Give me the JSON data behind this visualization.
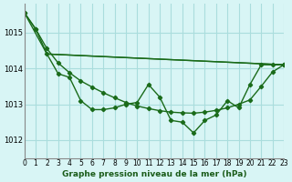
{
  "title": "Graphe pression niveau de la mer (hPa)",
  "background_color": "#d8f5f5",
  "grid_color": "#aadddd",
  "line_color": "#1a6b1a",
  "xlim": [
    0,
    23
  ],
  "ylim": [
    1011.5,
    1015.8
  ],
  "xtick_labels": [
    "0",
    "1",
    "2",
    "3",
    "4",
    "5",
    "6",
    "7",
    "8",
    "9",
    "10",
    "11",
    "12",
    "13",
    "14",
    "15",
    "16",
    "17",
    "18",
    "19",
    "20",
    "21",
    "22",
    "23"
  ],
  "ytick_values": [
    1012,
    1013,
    1014,
    1015
  ],
  "series": [
    {
      "x": [
        0,
        1,
        2,
        3,
        4,
        5,
        6,
        7,
        8,
        9,
        10,
        11,
        12,
        13,
        14,
        15,
        16,
        17,
        18,
        19,
        20,
        21,
        22,
        23
      ],
      "y": [
        1015.55,
        1015.1,
        1014.4,
        1013.85,
        1013.75,
        1013.1,
        1012.85,
        1012.85,
        1012.9,
        1013.0,
        1013.05,
        1013.55,
        1013.2,
        1012.55,
        1012.5,
        1012.2,
        1012.55,
        1012.7,
        1013.1,
        1012.9,
        1013.55,
        1014.1,
        1014.1,
        1014.1
      ]
    },
    {
      "x": [
        0,
        1,
        2,
        3,
        4,
        5,
        6,
        7,
        8,
        9,
        10,
        11,
        12,
        13,
        14,
        15,
        16,
        17,
        18,
        19,
        20,
        21,
        22,
        23
      ],
      "y": [
        1015.55,
        1015.1,
        1014.55,
        1014.15,
        1013.88,
        1013.65,
        1013.48,
        1013.32,
        1013.18,
        1013.05,
        1012.95,
        1012.88,
        1012.82,
        1012.78,
        1012.76,
        1012.75,
        1012.78,
        1012.83,
        1012.9,
        1013.0,
        1013.12,
        1013.5,
        1013.9,
        1014.1
      ]
    },
    {
      "x": [
        0,
        2,
        23
      ],
      "y": [
        1015.55,
        1014.4,
        1014.1
      ]
    },
    {
      "x": [
        2,
        23
      ],
      "y": [
        1014.4,
        1014.1
      ]
    }
  ]
}
